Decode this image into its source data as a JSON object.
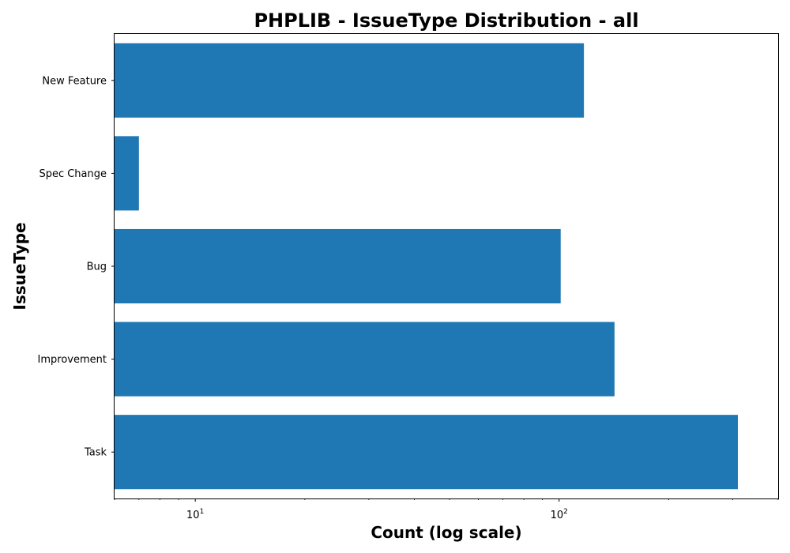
{
  "chart_data": {
    "type": "bar",
    "orientation": "horizontal",
    "title": "PHPLIB - IssueType Distribution - all",
    "xlabel": "Count (log scale)",
    "ylabel": "IssueType",
    "x_scale": "log",
    "xlim": [
      6,
      400
    ],
    "x_major_ticks": [
      {
        "value": 10,
        "mantissa": "10",
        "exponent": "1"
      },
      {
        "value": 100,
        "mantissa": "10",
        "exponent": "2"
      }
    ],
    "categories": [
      "Task",
      "Improvement",
      "Bug",
      "Spec Change",
      "New Feature"
    ],
    "values": [
      310,
      142,
      101,
      7,
      117
    ],
    "bar_color": "#1f77b4",
    "grid": false,
    "legend": "none"
  }
}
